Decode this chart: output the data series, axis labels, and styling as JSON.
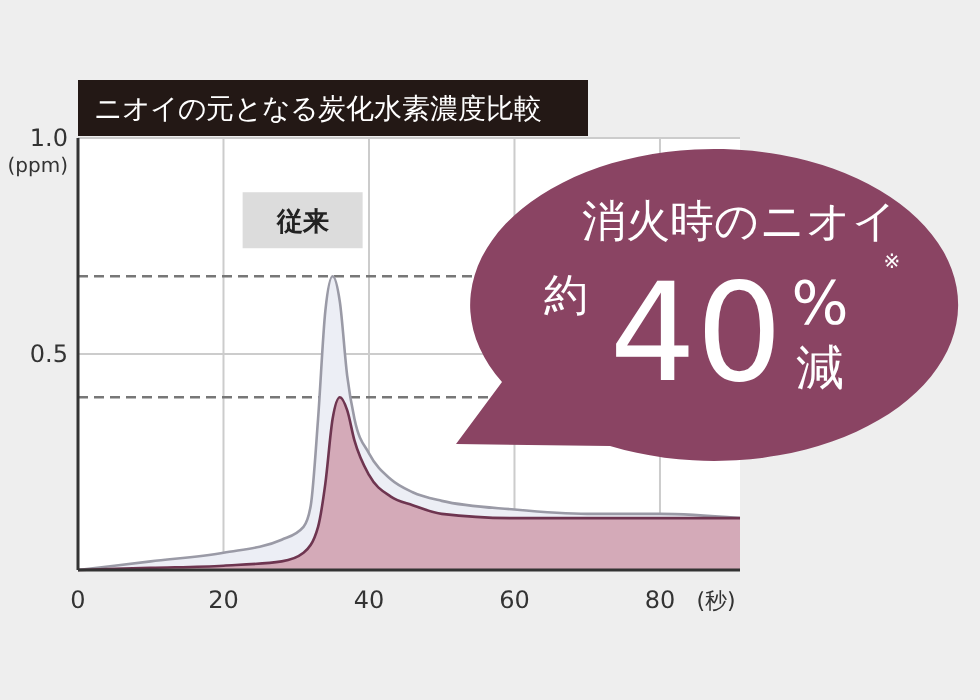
{
  "chart_data": {
    "type": "area",
    "title": "ニオイの元となる炭化水素濃度比較",
    "xlabel": "(秒)",
    "ylabel": "(ppm)",
    "xlim": [
      0,
      91
    ],
    "xticks": [
      0,
      20,
      40,
      60,
      80
    ],
    "ylim": [
      0,
      1
    ],
    "yticks": [
      {
        "value": 0.5,
        "label": "0.5"
      },
      {
        "value": 1,
        "label": "1.0"
      }
    ],
    "grid": true,
    "series": [
      {
        "name": "従来",
        "color": "#eceef5",
        "x": [
          0,
          10,
          20,
          28,
          31,
          32,
          33,
          34,
          35,
          36,
          37,
          38,
          40,
          43,
          46,
          50,
          60,
          70,
          80,
          91
        ],
        "values": [
          0,
          0.02,
          0.04,
          0.07,
          0.1,
          0.15,
          0.35,
          0.6,
          0.68,
          0.62,
          0.45,
          0.35,
          0.27,
          0.21,
          0.18,
          0.16,
          0.14,
          0.13,
          0.13,
          0.12
        ]
      },
      {
        "color": "#d4aab8",
        "x": [
          0,
          10,
          20,
          28,
          31,
          33,
          34,
          35,
          36,
          37,
          38,
          40,
          43,
          46,
          50,
          60,
          80,
          91
        ],
        "values": [
          0,
          0.005,
          0.01,
          0.02,
          0.04,
          0.1,
          0.2,
          0.35,
          0.4,
          0.37,
          0.3,
          0.22,
          0.17,
          0.15,
          0.13,
          0.12,
          0.12,
          0.12
        ]
      }
    ],
    "ref_lines": [
      {
        "axis": "y",
        "value": 0.68,
        "line_style": "dashed",
        "color": "#777777"
      },
      {
        "axis": "y",
        "value": 0.4,
        "line_style": "dashed",
        "color": "#777777"
      }
    ],
    "annotations": [
      "消火時のニオイ",
      "約",
      "40",
      "%",
      "減",
      "※"
    ]
  }
}
